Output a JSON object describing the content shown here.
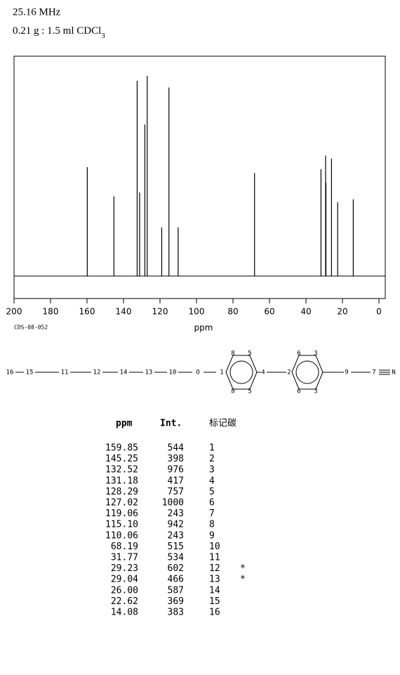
{
  "header": {
    "frequency": "25.16 MHz",
    "sample": "0.21 g : 1.5 ml CDCl",
    "sample_sub": "3"
  },
  "chart_data": {
    "type": "stick",
    "xlabel": "ppm",
    "code": "CDS-08-052",
    "xlim": [
      200,
      0
    ],
    "xticks": [
      200,
      180,
      160,
      140,
      120,
      100,
      80,
      60,
      40,
      20,
      0
    ]
  },
  "molecule": {
    "atoms": [
      "16",
      "15",
      "11",
      "12",
      "14",
      "13",
      "10",
      "O",
      "1",
      "8",
      "5",
      "8",
      "5",
      "4",
      "2",
      "6",
      "3",
      "6",
      "3",
      "9",
      "7",
      "N"
    ]
  },
  "table": {
    "headers": [
      "ppm",
      "Int.",
      "标记碳"
    ],
    "rows": [
      {
        "ppm": 159.85,
        "int": 544,
        "carbon": 1
      },
      {
        "ppm": 145.25,
        "int": 398,
        "carbon": 2
      },
      {
        "ppm": 132.52,
        "int": 976,
        "carbon": 3
      },
      {
        "ppm": 131.18,
        "int": 417,
        "carbon": 4
      },
      {
        "ppm": 128.29,
        "int": 757,
        "carbon": 5
      },
      {
        "ppm": 127.02,
        "int": 1000,
        "carbon": 6
      },
      {
        "ppm": 119.06,
        "int": 243,
        "carbon": 7
      },
      {
        "ppm": 115.1,
        "int": 942,
        "carbon": 8
      },
      {
        "ppm": 110.06,
        "int": 243,
        "carbon": 9
      },
      {
        "ppm": 68.19,
        "int": 515,
        "carbon": 10
      },
      {
        "ppm": 31.77,
        "int": 534,
        "carbon": 11
      },
      {
        "ppm": 29.23,
        "int": 602,
        "carbon": 12,
        "note": "*"
      },
      {
        "ppm": 29.04,
        "int": 466,
        "carbon": 13,
        "note": "*"
      },
      {
        "ppm": 26.0,
        "int": 587,
        "carbon": 14
      },
      {
        "ppm": 22.62,
        "int": 369,
        "carbon": 15
      },
      {
        "ppm": 14.08,
        "int": 383,
        "carbon": 16
      }
    ]
  }
}
